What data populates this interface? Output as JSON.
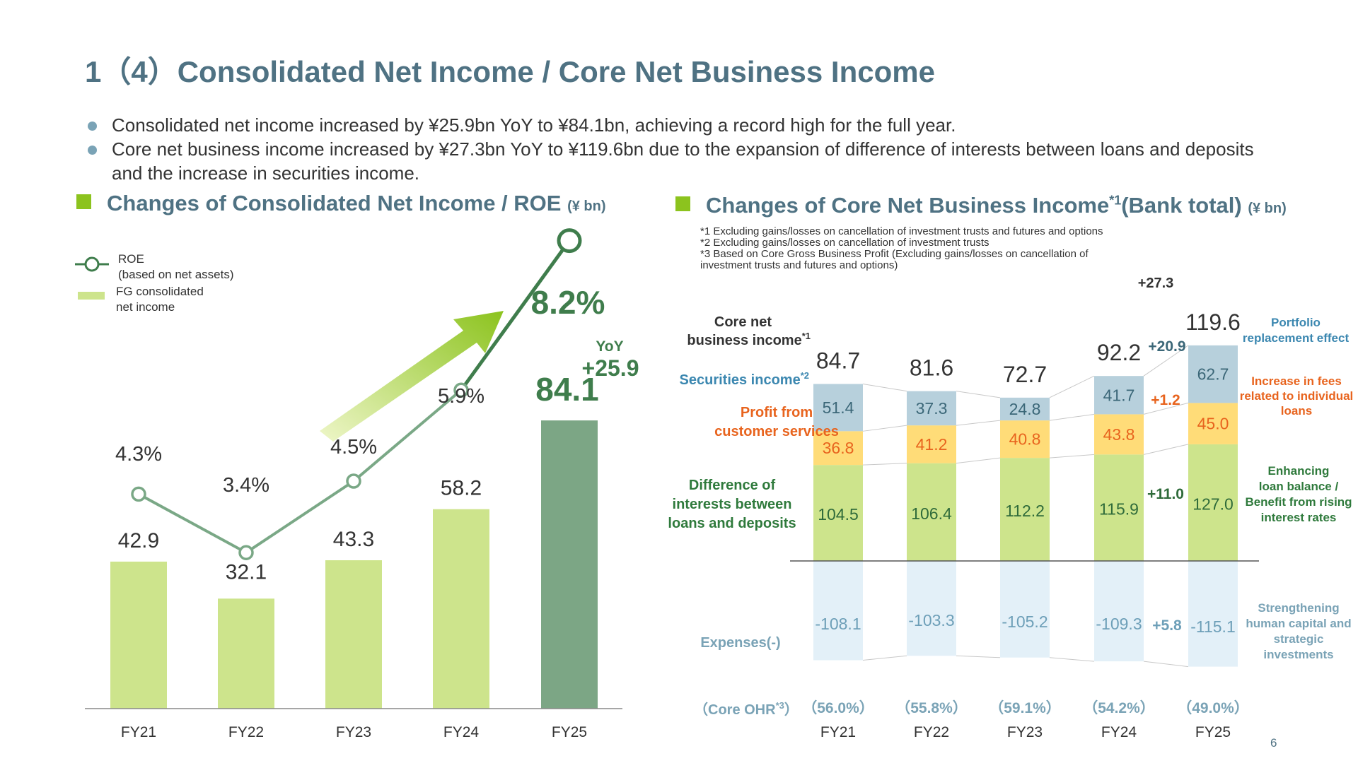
{
  "title": "1（4）Consolidated Net Income / Core Net Business Income",
  "bullets": [
    "Consolidated net income increased by ¥25.9bn YoY to ¥84.1bn, achieving a record high for the full year.",
    "Core net business income increased by ¥27.3bn  YoY to ¥119.6bn due to the expansion of difference of interests between loans and deposits and the increase in securities income."
  ],
  "left_section": {
    "title": "Changes of Consolidated Net Income / ROE",
    "unit": "(¥ bn)"
  },
  "right_section": {
    "title_a": "Changes of Core Net Business Income",
    "sup": "*1",
    "title_b": "(Bank total)",
    "unit": "(¥ bn)"
  },
  "notes": [
    "*1 Excluding gains/losses on cancellation of investment trusts and  futures and options",
    "*2 Excluding gains/losses on cancellation of investment trusts",
    "*3 Based on Core Gross Business Profit (Excluding gains/losses on cancellation of",
    "investment trusts and futures and options)"
  ],
  "page_number": "6",
  "colors": {
    "title": "#4f7283",
    "bar_light": "#cde48c",
    "bar_dark": "#7ca685",
    "roe_line": "#7aa886",
    "roe_line_dark": "#3f7d4c",
    "securities": "#b7d0dc",
    "customer": "#ffdc78",
    "interest": "#cde48c",
    "expenses": "#e3f0f8"
  },
  "chart_data": [
    {
      "type": "bar",
      "legend": {
        "roe_label": [
          "ROE",
          "(based on net assets)"
        ],
        "income_label": [
          "FG consolidated",
          "net income"
        ]
      },
      "categories": [
        "FY21",
        "FY22",
        "FY23",
        "FY24",
        "FY25"
      ],
      "series": [
        {
          "name": "FG consolidated net income",
          "values": [
            42.9,
            32.1,
            43.3,
            58.2,
            84.1
          ],
          "labels": [
            "42.9",
            "32.1",
            "43.3",
            "58.2",
            "84.1"
          ]
        },
        {
          "name": "ROE",
          "values": [
            4.3,
            3.4,
            4.5,
            5.9,
            8.2
          ],
          "labels": [
            "4.3%",
            "3.4%",
            "4.5%",
            "5.9%",
            "8.2%"
          ]
        }
      ],
      "yoy": {
        "label": "YoY",
        "value": "+25.9"
      }
    },
    {
      "type": "bar",
      "categories": [
        "FY21",
        "FY22",
        "FY23",
        "FY24",
        "FY25"
      ],
      "totals": [
        84.7,
        81.6,
        72.7,
        92.2,
        119.6
      ],
      "total_labels": [
        "84.7",
        "81.6",
        "72.7",
        "92.2",
        "119.6"
      ],
      "series": [
        {
          "name": "Difference of interests between loans and deposits",
          "values": [
            104.5,
            106.4,
            112.2,
            115.9,
            127.0
          ],
          "labels": [
            "104.5",
            "106.4",
            "112.2",
            "115.9",
            "127.0"
          ]
        },
        {
          "name": "Profit from customer services",
          "values": [
            36.8,
            41.2,
            40.8,
            43.8,
            45.0
          ],
          "labels": [
            "36.8",
            "41.2",
            "40.8",
            "43.8",
            "45.0"
          ]
        },
        {
          "name": "Securities income",
          "values": [
            51.4,
            37.3,
            24.8,
            41.7,
            62.7
          ],
          "labels": [
            "51.4",
            "37.3",
            "24.8",
            "41.7",
            "62.7"
          ]
        },
        {
          "name": "Expenses(-)",
          "values": [
            -108.1,
            -103.3,
            -105.2,
            -109.3,
            -115.1
          ],
          "labels": [
            "-108.1",
            "-103.3",
            "-105.2",
            "-109.3",
            "-115.1"
          ]
        }
      ],
      "ohr": [
        "（56.0%）",
        "（55.8%）",
        "（59.1%）",
        "（54.2%）",
        "（49.0%）"
      ],
      "row_labels": {
        "core": [
          "Core net",
          "business income",
          "*1"
        ],
        "securities": [
          "Securities income",
          "*2"
        ],
        "customer": [
          "Profit from",
          "customer services"
        ],
        "interest": [
          "Difference of",
          "interests between",
          "loans and deposits"
        ],
        "expenses": "Expenses(-)",
        "ohr": [
          "（Core OHR",
          "*3",
          "）"
        ]
      },
      "changes": {
        "total": "+27.3",
        "securities": "+20.9",
        "customer": "+1.2",
        "interest": "+11.0",
        "expenses": "+5.8"
      },
      "annotations": {
        "securities": [
          "Portfolio",
          "replacement effect"
        ],
        "customer": [
          "Increase in fees",
          "related to individual",
          "loans"
        ],
        "interest": [
          "Enhancing",
          "loan balance /",
          "Benefit from rising",
          "interest rates"
        ],
        "expenses": [
          "Strengthening",
          "human capital and",
          "strategic",
          "investments"
        ]
      }
    }
  ]
}
